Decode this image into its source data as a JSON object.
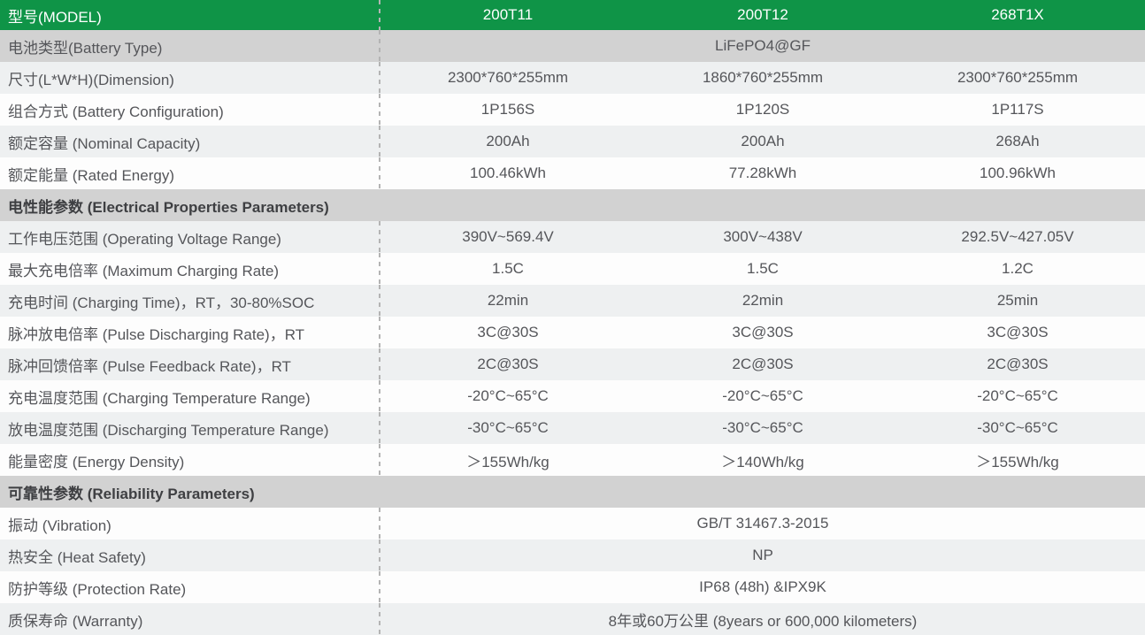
{
  "colors": {
    "header_green": "#0f9447",
    "section_gray": "#d2d2d2",
    "row_light": "#eef0f1",
    "row_white": "#fdfdfd",
    "dashed_line": "#b4b4b4",
    "text": "#55565a",
    "header_text": "#ffffff"
  },
  "table": {
    "header": {
      "label": "型号(MODEL)",
      "models": [
        "200T11",
        "200T12",
        "268T1X"
      ]
    },
    "rows": [
      {
        "type": "span",
        "label": "电池类型(Battery Type)",
        "value": "LiFePO4@GF"
      },
      {
        "type": "data",
        "label": "尺寸(L*W*H)(Dimension)",
        "values": [
          "2300*760*255mm",
          "1860*760*255mm",
          "2300*760*255mm"
        ]
      },
      {
        "type": "data",
        "label": "组合方式 (Battery Configuration)",
        "values": [
          "1P156S",
          "1P120S",
          "1P117S"
        ]
      },
      {
        "type": "data",
        "label": "额定容量 (Nominal Capacity)",
        "values": [
          "200Ah",
          "200Ah",
          "268Ah"
        ]
      },
      {
        "type": "data",
        "label": "额定能量 (Rated Energy)",
        "values": [
          "100.46kWh",
          "77.28kWh",
          "100.96kWh"
        ]
      },
      {
        "type": "section",
        "label": "电性能参数 (Electrical Properties Parameters)"
      },
      {
        "type": "data",
        "label": "工作电压范围 (Operating Voltage Range)",
        "values": [
          "390V~569.4V",
          "300V~438V",
          "292.5V~427.05V"
        ]
      },
      {
        "type": "data",
        "label": "最大充电倍率 (Maximum Charging Rate)",
        "values": [
          "1.5C",
          "1.5C",
          "1.2C"
        ]
      },
      {
        "type": "data",
        "label": "充电时间 (Charging Time)，RT，30-80%SOC",
        "values": [
          "22min",
          "22min",
          "25min"
        ]
      },
      {
        "type": "data",
        "label": "脉冲放电倍率 (Pulse Discharging Rate)，RT",
        "values": [
          "3C@30S",
          "3C@30S",
          "3C@30S"
        ]
      },
      {
        "type": "data",
        "label": "脉冲回馈倍率 (Pulse Feedback Rate)，RT",
        "values": [
          "2C@30S",
          "2C@30S",
          "2C@30S"
        ]
      },
      {
        "type": "data",
        "label": "充电温度范围 (Charging Temperature Range)",
        "values": [
          "-20°C~65°C",
          "-20°C~65°C",
          "-20°C~65°C"
        ]
      },
      {
        "type": "data",
        "label": "放电温度范围 (Discharging Temperature Range)",
        "values": [
          "-30°C~65°C",
          "-30°C~65°C",
          "-30°C~65°C"
        ]
      },
      {
        "type": "data",
        "label": "能量密度 (Energy Density)",
        "values": [
          "＞155Wh/kg",
          "＞140Wh/kg",
          "＞155Wh/kg"
        ]
      },
      {
        "type": "section",
        "label": "可靠性参数 (Reliability Parameters)"
      },
      {
        "type": "span",
        "label": "振动 (Vibration)",
        "value": "GB/T 31467.3-2015"
      },
      {
        "type": "span",
        "label": "热安全 (Heat Safety)",
        "value": "NP"
      },
      {
        "type": "span",
        "label": "防护等级 (Protection Rate)",
        "value": "IP68 (48h) &IPX9K"
      },
      {
        "type": "span",
        "label": "质保寿命 (Warranty)",
        "value": "8年或60万公里 (8years or 600,000 kilometers)"
      }
    ]
  }
}
